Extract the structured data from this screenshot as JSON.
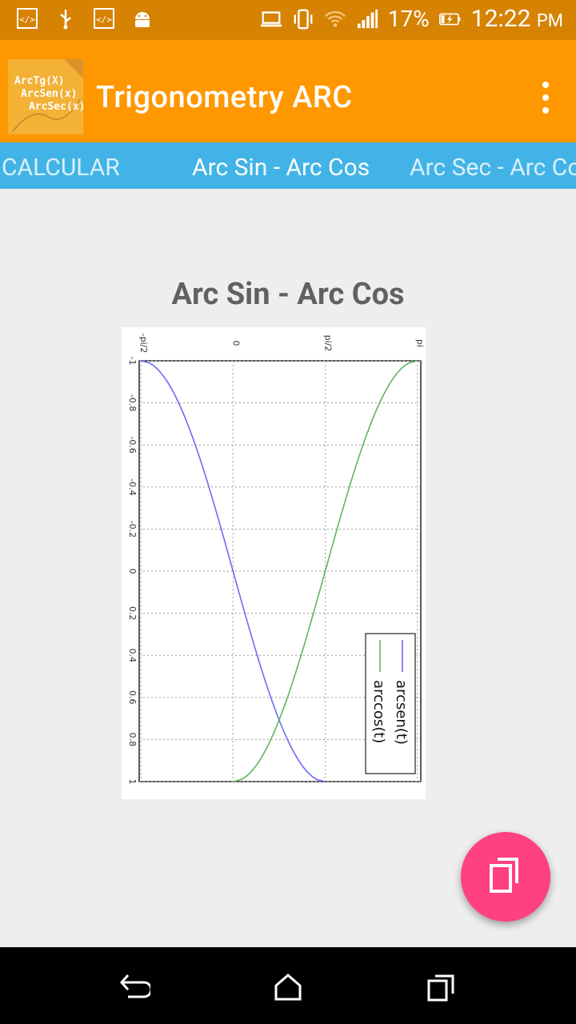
{
  "status_bar": {
    "battery_percent": "17%",
    "time": "12:22",
    "ampm": "PM",
    "icons": [
      "code-icon",
      "usb-icon",
      "code-icon",
      "android-icon",
      "laptop-icon",
      "vibrate-icon",
      "wifi-icon",
      "signal-icon",
      "battery-charging-icon"
    ]
  },
  "app_bar": {
    "title": "Trigonometry ARC",
    "logo_lines": [
      "ArcTg(X)",
      "ArcSen(x)",
      "ArcSec(x)"
    ]
  },
  "tabs": [
    {
      "label": "CALCULAR"
    },
    {
      "label": "Arc Sin - Arc Cos"
    },
    {
      "label": "Arc Sec - Arc Cosec"
    }
  ],
  "content": {
    "title": "Arc Sin - Arc Cos"
  },
  "chart_data": {
    "type": "line",
    "orientation": "rotated 90° clockwise (image of plot)",
    "x": [
      -1,
      -0.8,
      -0.6,
      -0.4,
      -0.2,
      0,
      0.2,
      0.4,
      0.6,
      0.8,
      1
    ],
    "x_tick_labels": [
      "-1",
      "-0.8",
      "-0.6",
      "-0.4",
      "-0.2",
      "0",
      "0.2",
      "0.4",
      "0.6",
      "0.8",
      "1"
    ],
    "y_tick_labels": [
      "-pi/2",
      "0",
      "pi/2",
      "pi"
    ],
    "xlim": [
      -1,
      1
    ],
    "ylim": [
      -1.6,
      3.2
    ],
    "grid": true,
    "legend_position": "bottom-right",
    "series": [
      {
        "name": "arcsen(t)",
        "color": "#6a6cf6",
        "values": [
          -1.5708,
          -0.9273,
          -0.6435,
          -0.4115,
          -0.2014,
          0,
          0.2014,
          0.4115,
          0.6435,
          0.9273,
          1.5708
        ]
      },
      {
        "name": "arccos(t)",
        "color": "#5cb85c",
        "values": [
          3.1416,
          2.4981,
          2.2143,
          1.9823,
          1.7722,
          1.5708,
          1.3694,
          1.1593,
          0.9273,
          0.6435,
          0
        ]
      }
    ]
  },
  "fab": {
    "icon": "copy-icon"
  },
  "nav": {
    "icons": [
      "back-icon",
      "home-icon",
      "recents-icon"
    ]
  }
}
